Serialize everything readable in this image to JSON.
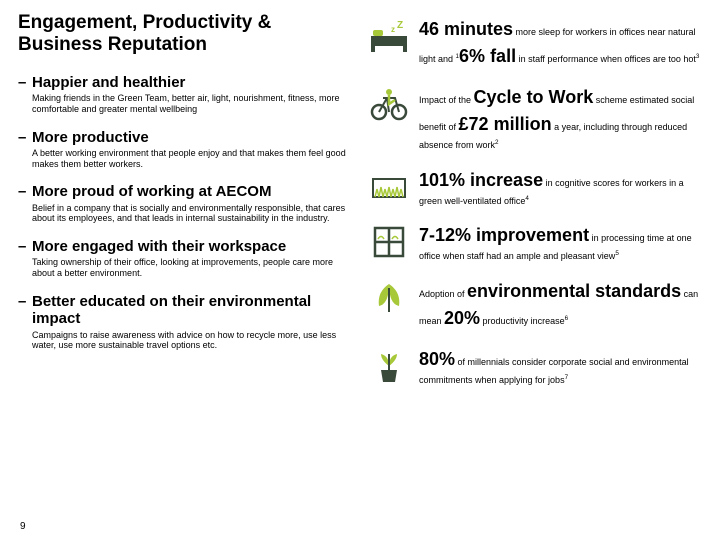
{
  "title": "Engagement, Productivity & Business Reputation",
  "bullets": [
    {
      "title": "Happier and healthier",
      "body": "Making friends in the Green Team, better air, light, nourishment, fitness, more comfortable and greater mental wellbeing"
    },
    {
      "title": "More productive",
      "body": "A better working environment that people enjoy and that makes them feel good makes them better workers."
    },
    {
      "title": "More proud of working at AECOM",
      "body": "Belief in a company that is socially and environmentally responsible, that cares about its employees, and that leads in internal sustainability in the industry."
    },
    {
      "title": "More engaged with their workspace",
      "body": "Taking ownership of their office, looking at improvements, people care more about a better environment."
    },
    {
      "title": "Better educated on their environmental impact",
      "body": "Campaigns to raise awareness with advice on how to recycle more, use less water, use more sustainable travel options etc."
    }
  ],
  "stats": [
    {
      "icon": "sleep",
      "segments": [
        {
          "t": "46 minutes",
          "c": "big"
        },
        {
          "t": " more sleep for workers in offices near natural light and ",
          "c": ""
        },
        {
          "t": "1",
          "c": "sup"
        },
        {
          "t": "6% fall",
          "c": "big"
        },
        {
          "t": " in staff performance when offices are too hot",
          "c": ""
        },
        {
          "t": "3",
          "c": "sup"
        }
      ]
    },
    {
      "icon": "bike",
      "segments": [
        {
          "t": "Impact of the ",
          "c": ""
        },
        {
          "t": "Cycle to Work",
          "c": "big"
        },
        {
          "t": " scheme estimated social benefit of ",
          "c": ""
        },
        {
          "t": "£72 million",
          "c": "big"
        },
        {
          "t": " a year, including through reduced absence from work",
          "c": ""
        },
        {
          "t": "2",
          "c": "sup"
        }
      ]
    },
    {
      "icon": "grass",
      "segments": [
        {
          "t": "101% increase",
          "c": "big"
        },
        {
          "t": " in cognitive scores for workers in a green well-ventilated office",
          "c": ""
        },
        {
          "t": "4",
          "c": "sup"
        }
      ]
    },
    {
      "icon": "window",
      "segments": [
        {
          "t": "7-12% improvement",
          "c": "big"
        },
        {
          "t": " in processing time at one office when staff had an ample and pleasant view",
          "c": ""
        },
        {
          "t": "5",
          "c": "sup"
        }
      ]
    },
    {
      "icon": "leaf",
      "segments": [
        {
          "t": "Adoption of ",
          "c": ""
        },
        {
          "t": "environmental standards",
          "c": "big"
        },
        {
          "t": " can mean ",
          "c": ""
        },
        {
          "t": "20%",
          "c": "big"
        },
        {
          "t": " productivity increase",
          "c": ""
        },
        {
          "t": "6",
          "c": "sup"
        }
      ]
    },
    {
      "icon": "plant",
      "segments": [
        {
          "t": "80%",
          "c": "big"
        },
        {
          "t": " of millennials consider corporate social and environmental commitments when applying for jobs",
          "c": ""
        },
        {
          "t": "7",
          "c": "sup"
        }
      ]
    }
  ],
  "page_number": "9",
  "colors": {
    "green": "#a7c838",
    "dark": "#3a4a3a"
  }
}
